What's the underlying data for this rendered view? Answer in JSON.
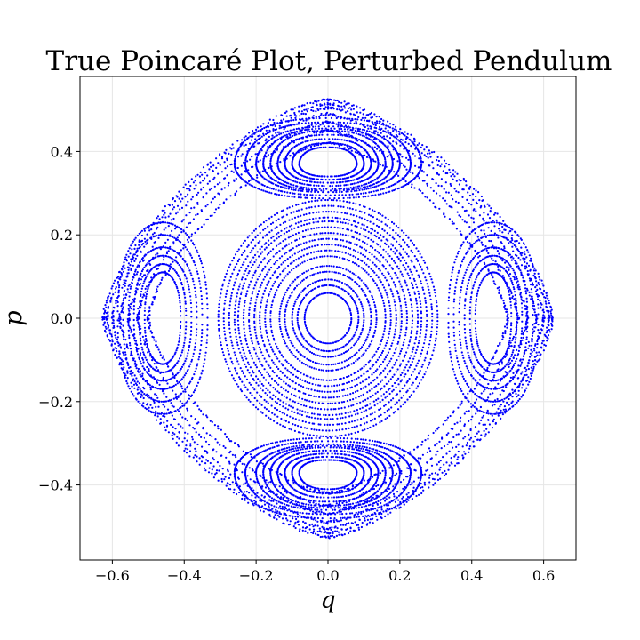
{
  "chart_data": {
    "type": "scatter",
    "title": "True Poincaré Plot, Perturbed Pendulum",
    "xlabel": "q",
    "ylabel": "p",
    "xlim": [
      -0.69,
      0.69
    ],
    "ylim": [
      -0.58,
      0.58
    ],
    "xticks": [
      -0.6,
      -0.4,
      -0.2,
      0.0,
      0.2,
      0.4,
      0.6
    ],
    "xtick_labels": [
      "−0.6",
      "−0.4",
      "−0.2",
      "0.0",
      "0.2",
      "0.4",
      "0.6"
    ],
    "yticks": [
      -0.4,
      -0.2,
      0.0,
      0.2,
      0.4
    ],
    "ytick_labels": [
      "−0.4",
      "−0.2",
      "0.0",
      "0.2",
      "0.4"
    ],
    "grid": true,
    "marker_color": "#0000ff",
    "families": [
      {
        "kind": "central_ellipse",
        "cx": 0.0,
        "cy": 0.0,
        "a": [
          0.065,
          0.085,
          0.1,
          0.12,
          0.135,
          0.16,
          0.175,
          0.19,
          0.205,
          0.22,
          0.235,
          0.25,
          0.26,
          0.275,
          0.29,
          0.305
        ],
        "b_ratio": 0.93
      },
      {
        "kind": "island",
        "cx": 0.0,
        "cy": 0.37,
        "a": [
          0.08,
          0.1,
          0.12,
          0.14,
          0.16,
          0.18,
          0.2,
          0.23,
          0.26
        ],
        "b": [
          0.04,
          0.05,
          0.06,
          0.07,
          0.08,
          0.085,
          0.09,
          0.1,
          0.11
        ],
        "dome_up": true
      },
      {
        "kind": "island",
        "cx": 0.0,
        "cy": -0.37,
        "a": [
          0.08,
          0.1,
          0.12,
          0.14,
          0.16,
          0.18,
          0.2,
          0.23,
          0.26
        ],
        "b": [
          0.04,
          0.05,
          0.06,
          0.07,
          0.08,
          0.085,
          0.09,
          0.1,
          0.11
        ],
        "dome_up": false
      },
      {
        "kind": "side_island",
        "cx": 0.46,
        "cy": 0.0,
        "a": [
          0.05,
          0.065,
          0.08,
          0.095,
          0.11,
          0.125
        ],
        "b": [
          0.11,
          0.13,
          0.15,
          0.17,
          0.2,
          0.23
        ]
      },
      {
        "kind": "side_island",
        "cx": -0.46,
        "cy": 0.0,
        "a": [
          0.05,
          0.065,
          0.08,
          0.095,
          0.11,
          0.125
        ],
        "b": [
          0.11,
          0.13,
          0.15,
          0.17,
          0.2,
          0.23
        ]
      },
      {
        "kind": "outer_superellipse",
        "ax": [
          0.5,
          0.53,
          0.555,
          0.58,
          0.6,
          0.615,
          0.625
        ],
        "ay": [
          0.42,
          0.45,
          0.47,
          0.49,
          0.505,
          0.515,
          0.525
        ],
        "n": 1.45
      }
    ]
  }
}
